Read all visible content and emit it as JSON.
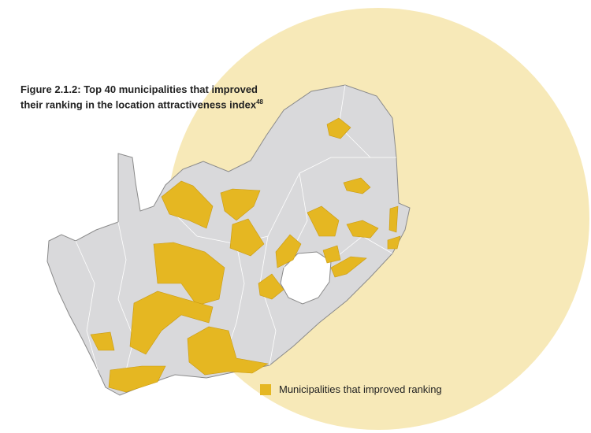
{
  "title": {
    "line1": "Figure 2.1.2: Top 40 municipalities that improved",
    "line2": "their ranking in the location attractiveness index",
    "footnote": "48"
  },
  "legend": {
    "label": "Municipalities that improved ranking"
  }
}
